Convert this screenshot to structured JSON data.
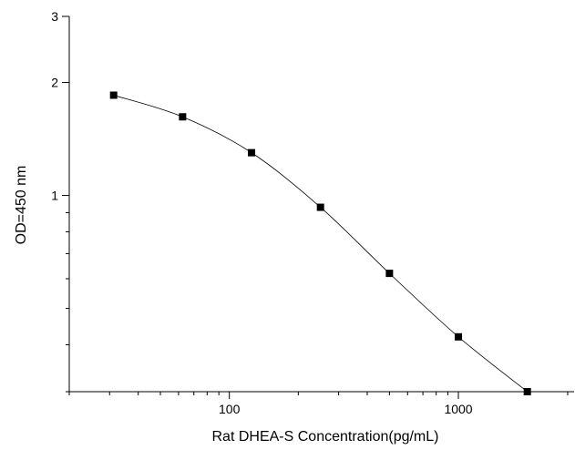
{
  "chart_data": {
    "type": "line",
    "title": "",
    "xlabel": "Rat DHEA-S Concentration(pg/mL)",
    "ylabel": "OD=450 nm",
    "x_scale": "log",
    "y_scale": "log",
    "xlim": [
      20,
      3200
    ],
    "ylim": [
      0.3,
      3
    ],
    "x_ticks": [
      100,
      1000
    ],
    "x_tick_labels": [
      "100",
      "1000"
    ],
    "y_ticks": [
      1,
      2,
      3
    ],
    "y_tick_labels": [
      "1",
      "2",
      "3"
    ],
    "grid": false,
    "legend": "none",
    "series": [
      {
        "x": [
          31.25,
          62.5,
          125,
          250,
          500,
          1000,
          2000
        ],
        "y": [
          1.85,
          1.62,
          1.3,
          0.93,
          0.62,
          0.42,
          0.3
        ],
        "marker": "square",
        "color": "#000000"
      }
    ]
  }
}
